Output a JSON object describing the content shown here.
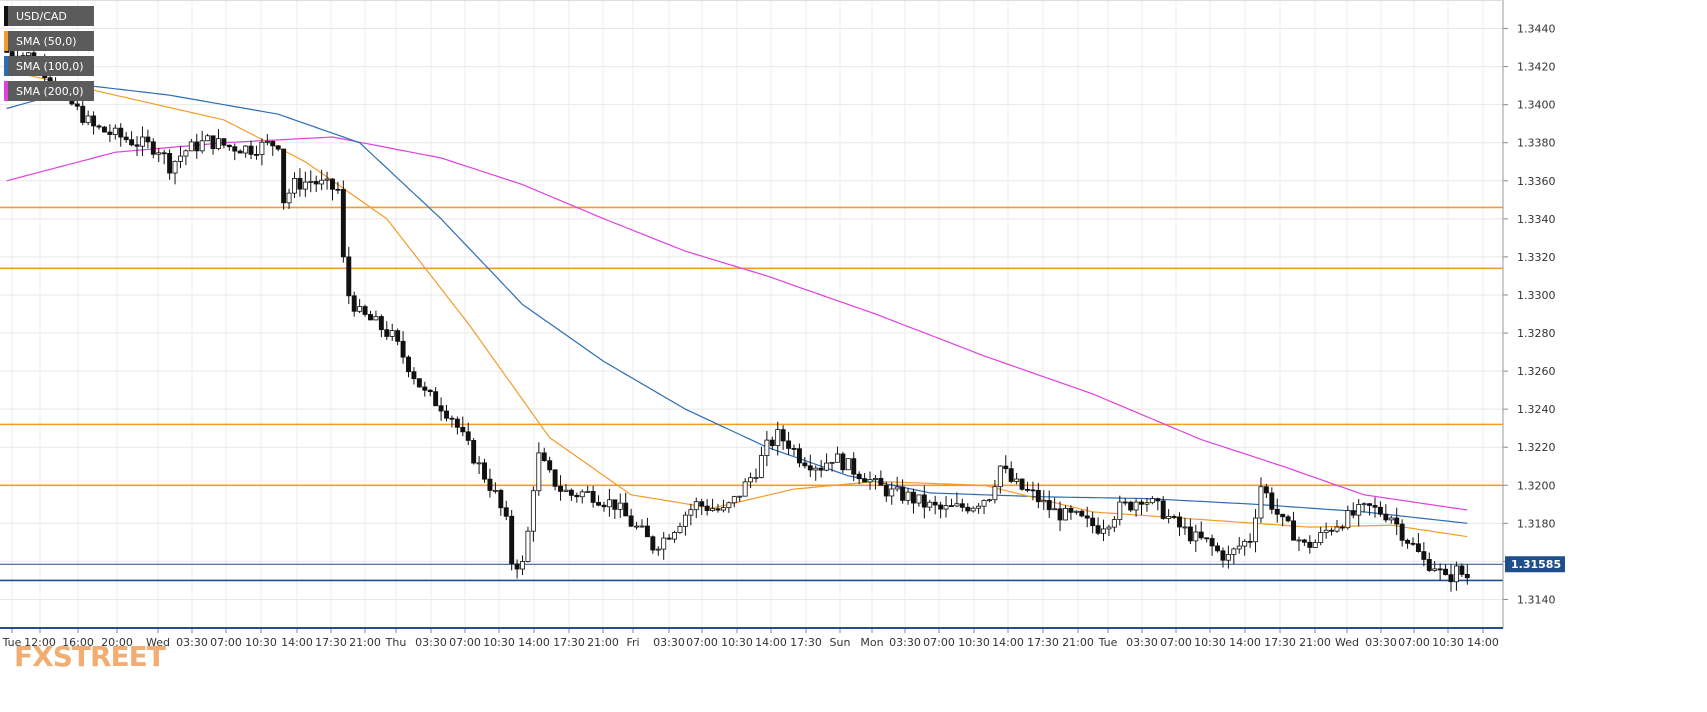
{
  "chart_data": {
    "type": "candlestick",
    "symbol": "USD/CAD",
    "last_price": "1.31585",
    "ylim": [
      1.3125,
      1.3455
    ],
    "y_ticks": [
      "1.3440",
      "1.3420",
      "1.3400",
      "1.3380",
      "1.3360",
      "1.3340",
      "1.3320",
      "1.3300",
      "1.3280",
      "1.3260",
      "1.3240",
      "1.3220",
      "1.3200",
      "1.3180",
      "1.3160",
      "1.3140"
    ],
    "x_ticks": [
      "Tue",
      "12:00",
      "16:00",
      "20:00",
      "Wed",
      "03:30",
      "07:00",
      "10:30",
      "14:00",
      "17:30",
      "21:00",
      "Thu",
      "03:30",
      "07:00",
      "10:30",
      "14:00",
      "17:30",
      "21:00",
      "Fri",
      "03:30",
      "07:00",
      "10:30",
      "14:00",
      "17:30",
      "Sun",
      "Mon",
      "03:30",
      "07:00",
      "10:30",
      "14:00",
      "17:30",
      "21:00",
      "Tue",
      "03:30",
      "07:00",
      "10:30",
      "14:00",
      "17:30",
      "21:00",
      "Wed",
      "03:30",
      "07:00",
      "10:30",
      "14:00"
    ],
    "legend": [
      {
        "label": "USD/CAD",
        "color": "#111111"
      },
      {
        "label": "SMA (50,0)",
        "color": "#f39c2a"
      },
      {
        "label": "SMA (100,0)",
        "color": "#2e6db4"
      },
      {
        "label": "SMA (200,0)",
        "color": "#e040e0"
      }
    ],
    "horizontal_levels": [
      {
        "value": 1.3346,
        "color": "#f39c2a"
      },
      {
        "value": 1.3314,
        "color": "#f39c2a"
      },
      {
        "value": 1.3232,
        "color": "#f39c2a"
      },
      {
        "value": 1.32,
        "color": "#f39c2a"
      },
      {
        "value": 1.315,
        "color": "#1f4e8c"
      }
    ],
    "last_price_value": 1.31585,
    "close_path": [
      [
        0,
        1.3428
      ],
      [
        4,
        1.3426
      ],
      [
        8,
        1.3415
      ],
      [
        12,
        1.34
      ],
      [
        16,
        1.3388
      ],
      [
        20,
        1.3384
      ],
      [
        24,
        1.338
      ],
      [
        28,
        1.3377
      ],
      [
        30,
        1.3368
      ],
      [
        33,
        1.3376
      ],
      [
        37,
        1.3381
      ],
      [
        41,
        1.3378
      ],
      [
        45,
        1.3377
      ],
      [
        48,
        1.3379
      ],
      [
        50,
        1.338
      ],
      [
        51,
        1.335
      ],
      [
        53,
        1.3358
      ],
      [
        56,
        1.336
      ],
      [
        59,
        1.3357
      ],
      [
        61,
        1.3355
      ],
      [
        62,
        1.3318
      ],
      [
        63,
        1.33
      ],
      [
        65,
        1.329
      ],
      [
        68,
        1.3285
      ],
      [
        71,
        1.3278
      ],
      [
        73,
        1.3268
      ],
      [
        75,
        1.3258
      ],
      [
        77,
        1.3248
      ],
      [
        80,
        1.3242
      ],
      [
        82,
        1.3236
      ],
      [
        84,
        1.3225
      ],
      [
        86,
        1.3215
      ],
      [
        88,
        1.3205
      ],
      [
        90,
        1.3195
      ],
      [
        92,
        1.318
      ],
      [
        93,
        1.316
      ],
      [
        95,
        1.3158
      ],
      [
        96,
        1.3175
      ],
      [
        97,
        1.32
      ],
      [
        98,
        1.3215
      ],
      [
        100,
        1.3205
      ],
      [
        102,
        1.3198
      ],
      [
        104,
        1.3195
      ],
      [
        106,
        1.3196
      ],
      [
        108,
        1.3195
      ],
      [
        110,
        1.3192
      ],
      [
        112,
        1.319
      ],
      [
        115,
        1.318
      ],
      [
        117,
        1.3175
      ],
      [
        119,
        1.3168
      ],
      [
        121,
        1.3172
      ],
      [
        123,
        1.3178
      ],
      [
        125,
        1.3185
      ],
      [
        127,
        1.319
      ],
      [
        130,
        1.3188
      ],
      [
        132,
        1.3186
      ],
      [
        134,
        1.3192
      ],
      [
        136,
        1.32
      ],
      [
        138,
        1.3208
      ],
      [
        140,
        1.322
      ],
      [
        142,
        1.3226
      ],
      [
        144,
        1.3222
      ],
      [
        146,
        1.3215
      ],
      [
        148,
        1.3212
      ],
      [
        150,
        1.321
      ],
      [
        152,
        1.3215
      ],
      [
        154,
        1.3212
      ],
      [
        156,
        1.3208
      ],
      [
        158,
        1.3205
      ],
      [
        160,
        1.32
      ],
      [
        163,
        1.3196
      ],
      [
        166,
        1.3194
      ],
      [
        169,
        1.319
      ],
      [
        172,
        1.3187
      ],
      [
        175,
        1.3188
      ],
      [
        178,
        1.319
      ],
      [
        181,
        1.3195
      ],
      [
        183,
        1.321
      ],
      [
        185,
        1.3202
      ],
      [
        187,
        1.3198
      ],
      [
        189,
        1.3195
      ],
      [
        191,
        1.319
      ],
      [
        193,
        1.3186
      ],
      [
        195,
        1.3184
      ],
      [
        197,
        1.3183
      ],
      [
        199,
        1.318
      ],
      [
        201,
        1.3178
      ],
      [
        203,
        1.3182
      ],
      [
        205,
        1.3188
      ],
      [
        207,
        1.319
      ],
      [
        209,
        1.3194
      ],
      [
        211,
        1.319
      ],
      [
        213,
        1.3186
      ],
      [
        215,
        1.318
      ],
      [
        217,
        1.3176
      ],
      [
        219,
        1.3172
      ],
      [
        221,
        1.317
      ],
      [
        223,
        1.3165
      ],
      [
        225,
        1.3162
      ],
      [
        227,
        1.3168
      ],
      [
        229,
        1.3172
      ],
      [
        231,
        1.32
      ],
      [
        233,
        1.319
      ],
      [
        235,
        1.318
      ],
      [
        237,
        1.3175
      ],
      [
        239,
        1.3168
      ],
      [
        241,
        1.317
      ],
      [
        243,
        1.3176
      ],
      [
        245,
        1.318
      ],
      [
        247,
        1.3183
      ],
      [
        249,
        1.3186
      ],
      [
        251,
        1.3188
      ],
      [
        253,
        1.3186
      ],
      [
        255,
        1.3184
      ],
      [
        257,
        1.3175
      ],
      [
        259,
        1.3168
      ],
      [
        261,
        1.316
      ],
      [
        263,
        1.3158
      ],
      [
        265,
        1.315
      ],
      [
        267,
        1.3155
      ],
      [
        269,
        1.3152
      ]
    ],
    "sma50_path": [
      [
        0,
        1.3418
      ],
      [
        20,
        1.3405
      ],
      [
        40,
        1.3392
      ],
      [
        55,
        1.337
      ],
      [
        70,
        1.334
      ],
      [
        85,
        1.3285
      ],
      [
        100,
        1.3225
      ],
      [
        115,
        1.3195
      ],
      [
        130,
        1.3188
      ],
      [
        145,
        1.3198
      ],
      [
        160,
        1.3202
      ],
      [
        180,
        1.32
      ],
      [
        200,
        1.3186
      ],
      [
        220,
        1.3182
      ],
      [
        240,
        1.3178
      ],
      [
        255,
        1.3179
      ],
      [
        269,
        1.3173
      ]
    ],
    "sma100_path": [
      [
        0,
        1.3398
      ],
      [
        15,
        1.341
      ],
      [
        30,
        1.3405
      ],
      [
        50,
        1.3395
      ],
      [
        65,
        1.338
      ],
      [
        80,
        1.334
      ],
      [
        95,
        1.3295
      ],
      [
        110,
        1.3265
      ],
      [
        125,
        1.324
      ],
      [
        140,
        1.322
      ],
      [
        155,
        1.3205
      ],
      [
        170,
        1.3196
      ],
      [
        190,
        1.3194
      ],
      [
        210,
        1.3193
      ],
      [
        230,
        1.319
      ],
      [
        250,
        1.3186
      ],
      [
        269,
        1.318
      ]
    ],
    "sma200_path": [
      [
        0,
        1.336
      ],
      [
        20,
        1.3375
      ],
      [
        40,
        1.338
      ],
      [
        60,
        1.3383
      ],
      [
        80,
        1.3372
      ],
      [
        95,
        1.3358
      ],
      [
        110,
        1.334
      ],
      [
        125,
        1.3323
      ],
      [
        140,
        1.331
      ],
      [
        160,
        1.329
      ],
      [
        180,
        1.3268
      ],
      [
        200,
        1.3248
      ],
      [
        220,
        1.3224
      ],
      [
        235,
        1.321
      ],
      [
        250,
        1.3195
      ],
      [
        269,
        1.3187
      ]
    ]
  },
  "branding": {
    "logo_text": "FXSTREET"
  }
}
